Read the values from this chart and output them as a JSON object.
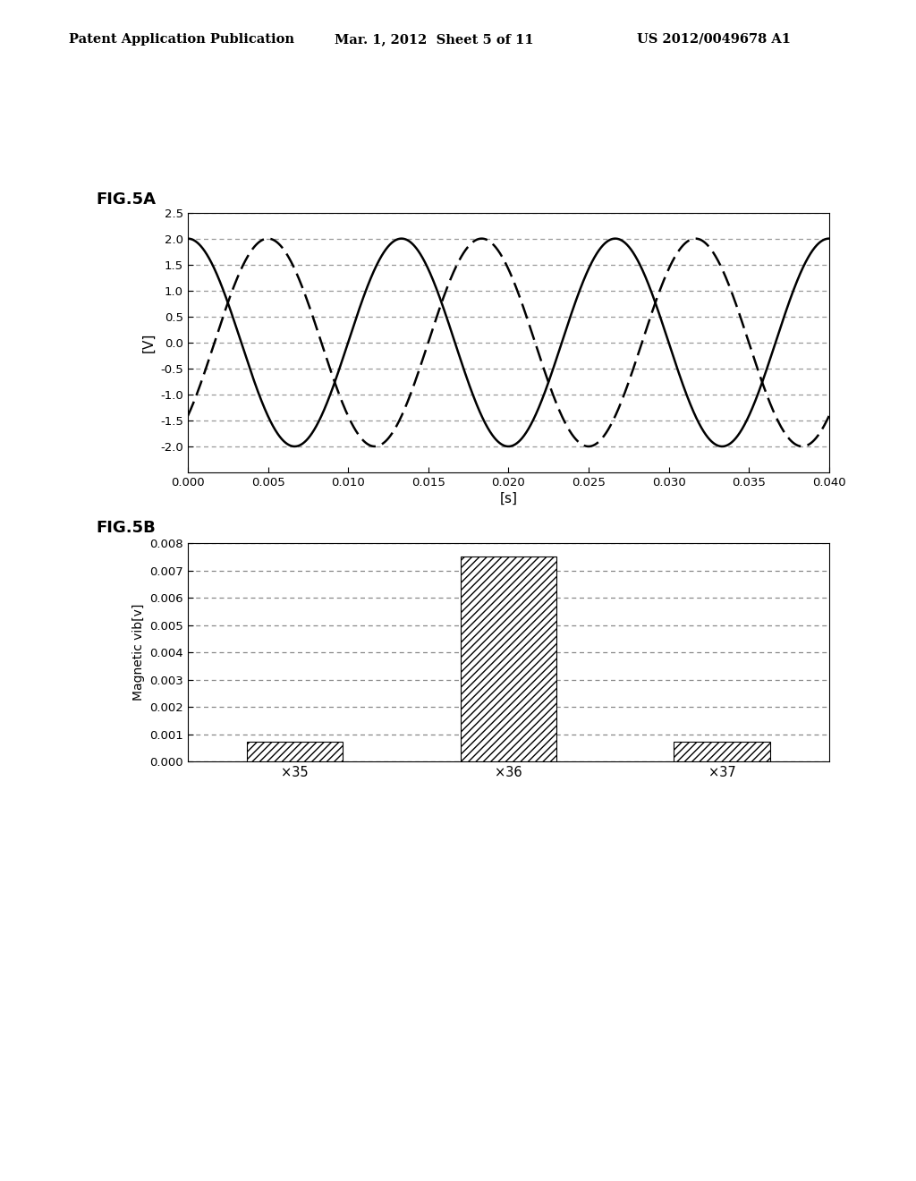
{
  "header_left": "Patent Application Publication",
  "header_mid": "Mar. 1, 2012  Sheet 5 of 11",
  "header_right": "US 2012/0049678 A1",
  "fig5a_label": "FIG.5A",
  "fig5b_label": "FIG.5B",
  "fig5a_ylabel": "[V]",
  "fig5a_xlabel": "[s]",
  "fig5a_ylim": [
    -2.5,
    2.5
  ],
  "fig5a_xlim": [
    0.0,
    0.04
  ],
  "fig5a_yticks": [
    -2.0,
    -1.5,
    -1.0,
    -0.5,
    0.0,
    0.5,
    1.0,
    1.5,
    2.0,
    2.5
  ],
  "fig5a_xticks": [
    0.0,
    0.005,
    0.01,
    0.015,
    0.02,
    0.025,
    0.03,
    0.035,
    0.04
  ],
  "solid_amplitude": 2.0,
  "solid_freq": 75.0,
  "solid_phase_deg": 90.0,
  "dashed_amplitude": 2.0,
  "dashed_freq": 75.0,
  "dashed_phase_deg": -45.0,
  "fig5b_ylabel": "Magnetic vib[v]",
  "fig5b_categories": [
    "×35",
    "×36",
    "×37"
  ],
  "fig5b_values": [
    0.00075,
    0.0075,
    0.00075
  ],
  "fig5b_ylim": [
    0.0,
    0.008
  ],
  "fig5b_yticks": [
    0.0,
    0.001,
    0.002,
    0.003,
    0.004,
    0.005,
    0.006,
    0.007,
    0.008
  ],
  "background_color": "#ffffff",
  "line_color": "#000000",
  "grid_color_5a": "#999999",
  "grid_color_5b": "#888888",
  "bar_hatch": "////",
  "bar_edgecolor": "#000000",
  "bar_facecolor": "#ffffff"
}
